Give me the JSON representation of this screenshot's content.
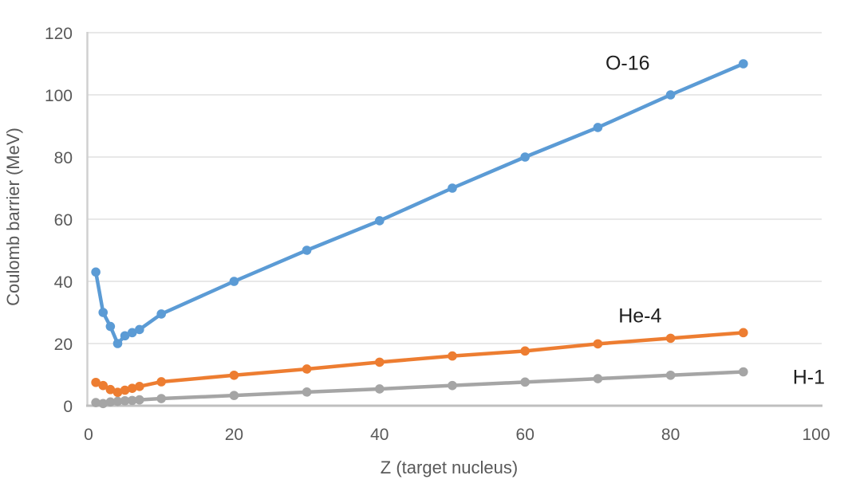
{
  "chart_data": {
    "type": "line",
    "title": "",
    "xlabel": "Z (target nucleus)",
    "ylabel": "Coulomb barrier (MeV)",
    "xlim": [
      0,
      100
    ],
    "ylim": [
      0,
      120
    ],
    "x_ticks": [
      0,
      20,
      40,
      60,
      80,
      100
    ],
    "y_ticks": [
      0,
      20,
      40,
      60,
      80,
      100,
      120
    ],
    "grid": "horizontal-only",
    "legend": "inline-labels-near-lines",
    "x": [
      1,
      2,
      3,
      4,
      5,
      6,
      7,
      10,
      20,
      30,
      40,
      50,
      60,
      70,
      80,
      90
    ],
    "series": [
      {
        "name": "O-16",
        "color": "#5B9BD5",
        "values": [
          43,
          30,
          25.5,
          20,
          22.5,
          23.5,
          24.5,
          29.5,
          40,
          50,
          59.5,
          70,
          80,
          89.5,
          100,
          110
        ],
        "label_pos": {
          "z": 74.1,
          "mev": 110
        }
      },
      {
        "name": "He-4",
        "color": "#ED7D31",
        "values": [
          7.5,
          6.5,
          5.2,
          4.3,
          5.0,
          5.6,
          6.2,
          7.7,
          9.8,
          11.8,
          14.0,
          16.0,
          17.6,
          19.9,
          21.7,
          23.5
        ],
        "label_pos": {
          "z": 75.8,
          "mev": 28.7
        }
      },
      {
        "name": "H-1",
        "color": "#A5A5A5",
        "values": [
          1.0,
          0.7,
          1.2,
          1.4,
          1.6,
          1.7,
          1.9,
          2.3,
          3.3,
          4.4,
          5.4,
          6.5,
          7.6,
          8.7,
          9.8,
          10.9
        ],
        "label_pos": {
          "z": 99.0,
          "mev": 9.0
        }
      }
    ],
    "style_colors": {
      "gridline": "#D9D9D9",
      "x_axis_line": "#BFBFBF",
      "y_axis_line": "#D0D0D0",
      "tick_text": "#595959",
      "series_label_text": "#1f1f1f"
    }
  }
}
